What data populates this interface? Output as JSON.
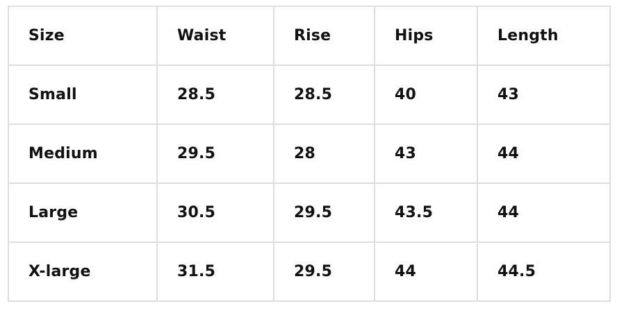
{
  "table": {
    "headers": [
      "Size",
      "Waist",
      "Rise",
      "Hips",
      "Length"
    ],
    "rows": [
      [
        "Small",
        "28.5",
        "28.5",
        "40",
        "43"
      ],
      [
        "Medium",
        "29.5",
        "28",
        "43",
        "44"
      ],
      [
        "Large",
        "30.5",
        "29.5",
        "43.5",
        "44"
      ],
      [
        "X-large",
        "31.5",
        "29.5",
        "44",
        "44.5"
      ]
    ]
  }
}
